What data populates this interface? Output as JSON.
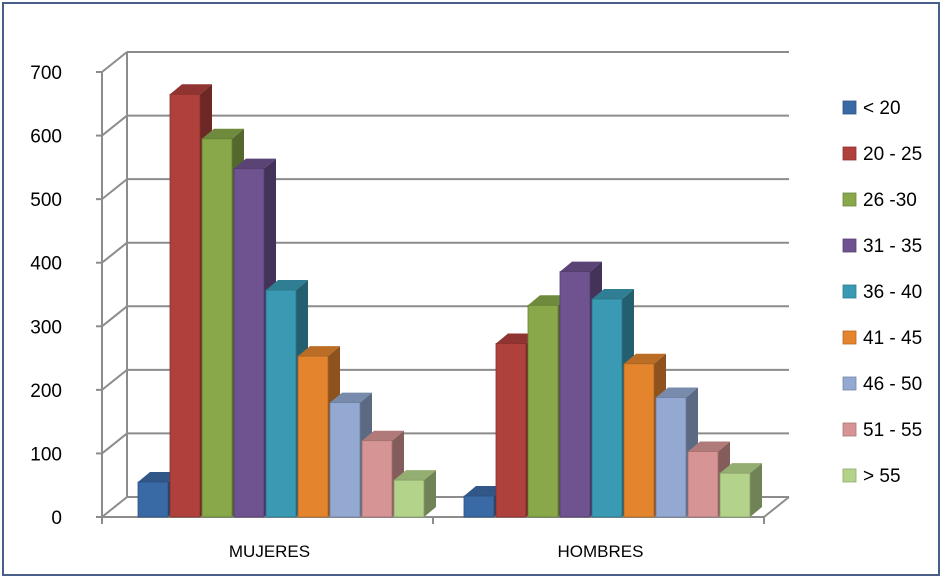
{
  "chart_data": {
    "type": "bar",
    "categories": [
      "MUJERES",
      "HOMBRES"
    ],
    "series": [
      {
        "name": "< 20",
        "values": [
          55,
          33
        ],
        "color": "#3a6aa6"
      },
      {
        "name": "20 - 25",
        "values": [
          665,
          273
        ],
        "color": "#b0403c"
      },
      {
        "name": "26 -30",
        "values": [
          595,
          333
        ],
        "color": "#88a84a"
      },
      {
        "name": "31 - 35",
        "values": [
          548,
          386
        ],
        "color": "#6e5390"
      },
      {
        "name": "36 - 40",
        "values": [
          357,
          343
        ],
        "color": "#3a9ab4"
      },
      {
        "name": "41 - 45",
        "values": [
          253,
          241
        ],
        "color": "#e4852e"
      },
      {
        "name": "46 - 50",
        "values": [
          180,
          188
        ],
        "color": "#93a9d2"
      },
      {
        "name": "51 - 55",
        "values": [
          120,
          103
        ],
        "color": "#d69594"
      },
      {
        "name": "> 55",
        "values": [
          58,
          69
        ],
        "color": "#b4d38a"
      }
    ],
    "yticks": [
      0,
      100,
      200,
      300,
      400,
      500,
      600,
      700
    ],
    "ylim": [
      0,
      700
    ],
    "grid": true,
    "legend": "right",
    "title": "",
    "xlabel": "",
    "ylabel": ""
  }
}
